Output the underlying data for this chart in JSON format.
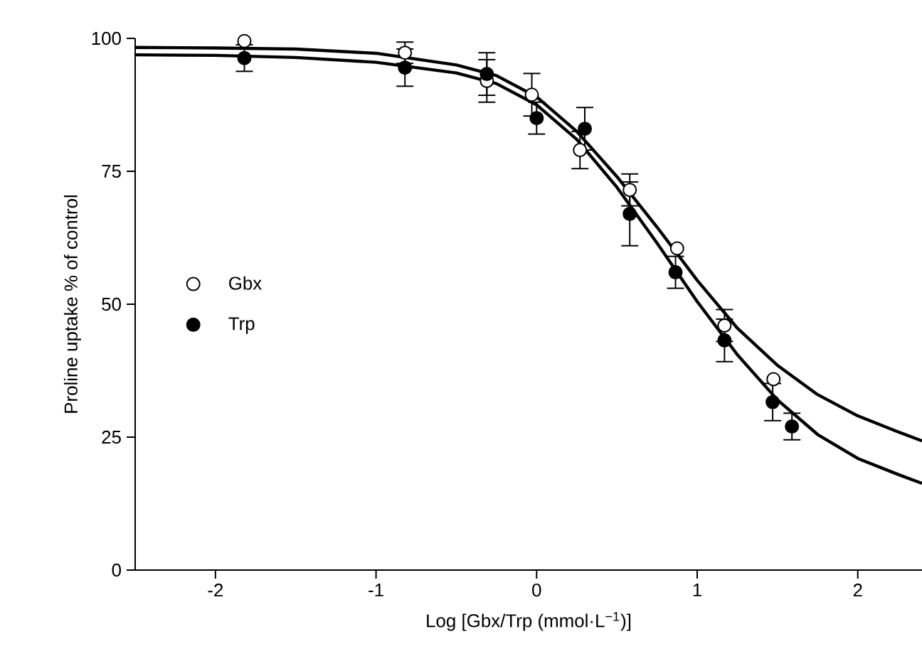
{
  "chart_data": {
    "type": "scatter",
    "xlabel": "Log [Gbx/Trp (mmol·L$^{−1}$)]",
    "ylabel": "Proline uptake % of control",
    "xlim": [
      -2.5,
      2.4
    ],
    "ylim": [
      0,
      100
    ],
    "xticks": [
      -2,
      -1,
      0,
      1,
      2
    ],
    "yticks": [
      0,
      25,
      50,
      75,
      100
    ],
    "legend": "left",
    "marker": "circle",
    "grid": false,
    "series": [
      {
        "name": "Gbx",
        "color": "#ffffff",
        "x": [
          -1.82,
          -0.82,
          -0.31,
          -0.03,
          0.27,
          0.58,
          0.875,
          1.17,
          1.475
        ],
        "values": [
          99.5,
          97.3,
          92,
          89.4,
          79,
          71.5,
          60.5,
          46,
          35.9
        ],
        "errors": [
          null,
          2,
          4,
          4,
          3.5,
          3,
          null,
          3,
          null
        ]
      },
      {
        "name": "Trp",
        "color": "#000000",
        "x": [
          -1.82,
          -0.82,
          -0.31,
          0.0,
          0.3,
          0.58,
          0.865,
          1.17,
          1.47,
          1.59
        ],
        "values": [
          96.3,
          94.5,
          93.3,
          85,
          83,
          67,
          56,
          43.2,
          31.6,
          27
        ],
        "errors": [
          2.5,
          3.5,
          4,
          3,
          4,
          6,
          3,
          4,
          3.5,
          2.5
        ]
      },
      {
        "type": "line",
        "color": "#000000",
        "marker": "none",
        "x": [
          -2.5,
          -2,
          -1.5,
          -1,
          -0.5,
          -0.25,
          0,
          0.25,
          0.5,
          0.75,
          1,
          1.25,
          1.5,
          1.75,
          2,
          2.25,
          2.4
        ],
        "values": [
          98.3,
          98.2,
          98,
          97.2,
          95,
          93,
          89,
          82.5,
          74,
          64.5,
          54.5,
          45.5,
          38.5,
          33,
          29,
          26,
          24.3
        ]
      },
      {
        "type": "line",
        "color": "#000000",
        "marker": "none",
        "x": [
          -2.5,
          -2,
          -1.5,
          -1,
          -0.5,
          -0.25,
          0,
          0.25,
          0.5,
          0.75,
          1,
          1.25,
          1.5,
          1.75,
          2,
          2.25,
          2.4
        ],
        "values": [
          96.9,
          96.8,
          96.4,
          95.5,
          93.5,
          91.5,
          87.5,
          81,
          72,
          61.5,
          50.5,
          40.5,
          32,
          25.5,
          21,
          18,
          16.3
        ]
      }
    ]
  }
}
